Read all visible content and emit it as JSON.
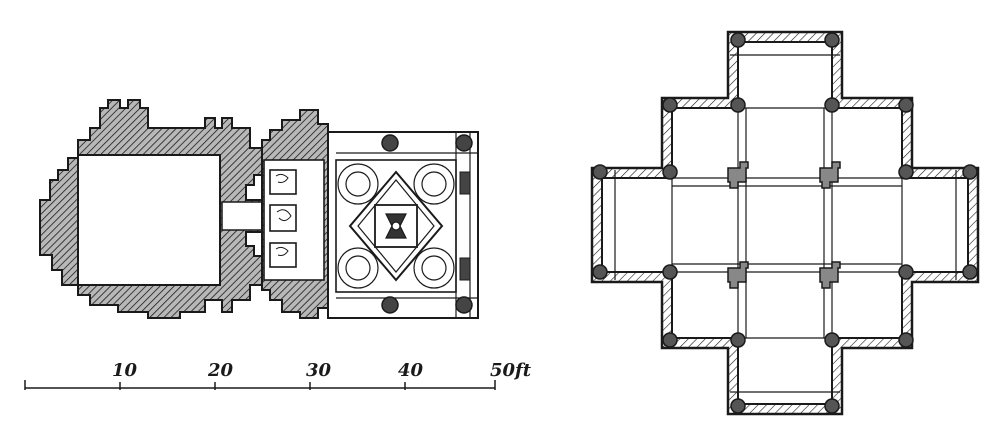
{
  "scale_bar": {
    "ticks": [
      "10",
      "20",
      "30",
      "40",
      "50ft"
    ]
  },
  "colors": {
    "ink": "#1a1a1a",
    "wall_fill": "#8c8c8c",
    "paper": "#ffffff"
  }
}
